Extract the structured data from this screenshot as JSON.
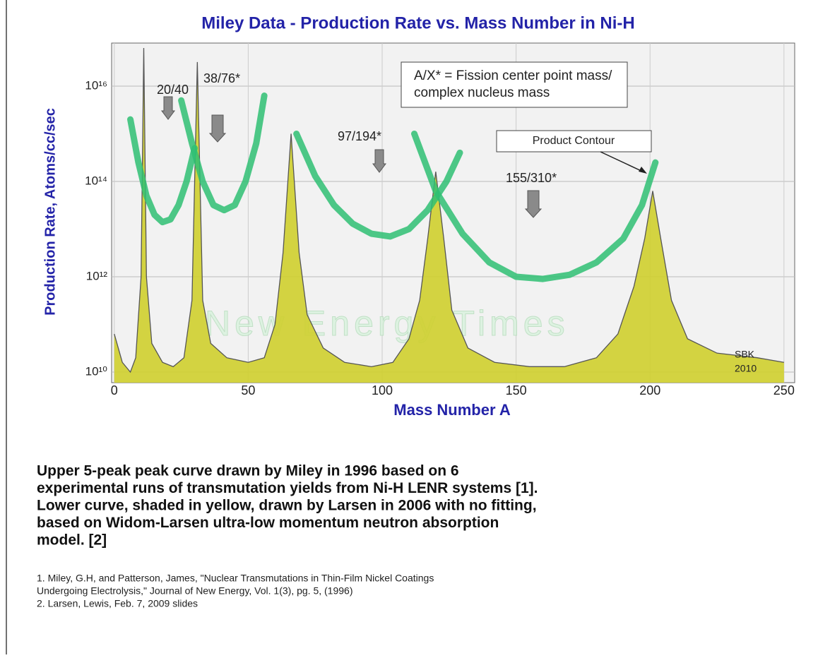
{
  "chart_data": {
    "type": "line",
    "title": "Miley Data - Production Rate vs. Mass Number in Ni-H",
    "x_label": "Mass Number A",
    "y_label": "Production Rate,  Atoms/cc/sec",
    "log_y": true,
    "grid": true,
    "xlim": [
      -1,
      254
    ],
    "xticks": [
      0,
      50,
      100,
      150,
      200,
      250
    ],
    "ylim": [
      6000000000.0,
      8e+16
    ],
    "yticks": [
      {
        "value": 10000000000.0,
        "label": "10¹⁰"
      },
      {
        "value": 1000000000000.0,
        "label": "10¹²"
      },
      {
        "value": 100000000000000.0,
        "label": "10¹⁴"
      },
      {
        "value": 1e+16,
        "label": "10¹⁶"
      }
    ],
    "area": {
      "color": "#cfcf2e",
      "x": [
        0,
        3,
        6,
        8,
        10,
        11,
        12,
        14,
        18,
        22,
        26,
        29,
        31,
        33,
        36,
        42,
        50,
        56,
        60,
        63,
        66,
        69,
        72,
        78,
        86,
        96,
        104,
        110,
        114,
        117,
        120,
        123,
        126,
        132,
        142,
        155,
        168,
        180,
        188,
        194,
        198,
        201,
        204,
        208,
        214,
        225,
        240,
        250
      ],
      "values": [
        63000000000.0,
        16000000000.0,
        10000000000.0,
        20000000000.0,
        1000000000000.0,
        6.3e+16,
        1000000000000.0,
        40000000000.0,
        16000000000.0,
        13000000000.0,
        20000000000.0,
        320000000000.0,
        3.2e+16,
        320000000000.0,
        40000000000.0,
        20000000000.0,
        16000000000.0,
        20000000000.0,
        100000000000.0,
        3200000000000.0,
        1000000000000000.0,
        3200000000000.0,
        160000000000.0,
        32000000000.0,
        16000000000.0,
        13000000000.0,
        16000000000.0,
        50000000000.0,
        320000000000.0,
        6300000000000.0,
        160000000000000.0,
        6300000000000.0,
        200000000000.0,
        32000000000.0,
        16000000000.0,
        13000000000.0,
        13000000000.0,
        20000000000.0,
        63000000000.0,
        630000000000.0,
        6300000000000.0,
        63000000000000.0,
        6300000000000.0,
        320000000000.0,
        50000000000.0,
        25000000000.0,
        20000000000.0,
        16000000000.0
      ]
    },
    "curves_color": "#2fbf73",
    "curves": [
      {
        "x": [
          6,
          9,
          12,
          15,
          18,
          21,
          24,
          27,
          30
        ],
        "values": [
          2000000000000000.0,
          250000000000000.0,
          50000000000000.0,
          20000000000000.0,
          14000000000000.0,
          16000000000000.0,
          32000000000000.0,
          100000000000000.0,
          500000000000000.0
        ]
      },
      {
        "x": [
          25,
          29,
          33,
          37,
          41,
          45,
          49,
          53,
          56
        ],
        "values": [
          5000000000000000.0,
          630000000000000.0,
          100000000000000.0,
          32000000000000.0,
          25000000000000.0,
          32000000000000.0,
          100000000000000.0,
          630000000000000.0,
          6300000000000000.0
        ]
      },
      {
        "x": [
          68,
          75,
          82,
          89,
          96,
          103,
          110,
          117,
          124,
          129
        ],
        "values": [
          1000000000000000.0,
          130000000000000.0,
          32000000000000.0,
          13000000000000.0,
          8000000000000.0,
          7000000000000.0,
          10000000000000.0,
          25000000000000.0,
          100000000000000.0,
          400000000000000.0
        ]
      },
      {
        "x": [
          112,
          120,
          130,
          140,
          150,
          160,
          170,
          180,
          190,
          197,
          202
        ],
        "values": [
          1000000000000000.0,
          63000000000000.0,
          8000000000000.0,
          2000000000000.0,
          1000000000000.0,
          900000000000.0,
          1100000000000.0,
          2000000000000.0,
          6300000000000.0,
          32000000000000.0,
          250000000000000.0
        ]
      }
    ],
    "annotations": [
      "20/40",
      "38/76*",
      "97/194*",
      "155/310*",
      "Product Contour"
    ],
    "note_lines": [
      "A/X* = Fission center point mass/",
      "complex nucleus mass"
    ],
    "credit_lines": [
      "SBK",
      "2010"
    ],
    "watermark": "New Energy Times"
  },
  "caption": {
    "lines": [
      "Upper 5-peak peak curve drawn by Miley in 1996 based on 6",
      "experimental runs of transmutation yields from Ni-H LENR systems [1].",
      "Lower curve, shaded in yellow, drawn by Larsen in 2006 with no fitting,",
      "based on Widom-Larsen ultra-low momentum neutron absorption",
      "model. [2]"
    ],
    "references": [
      "1. Miley, G.H, and Patterson, James, \"Nuclear Transmutations in Thin-Film Nickel Coatings",
      "Undergoing Electrolysis,\" Journal of New Energy, Vol. 1(3), pg. 5, (1996)",
      "2. Larsen, Lewis, Feb. 7, 2009 slides"
    ]
  }
}
